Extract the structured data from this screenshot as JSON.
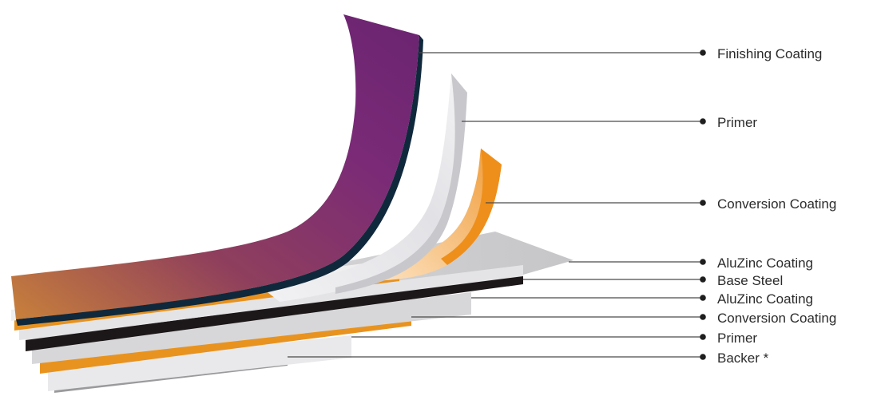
{
  "labels": {
    "finishing_coating": "Finishing Coating",
    "primer_top": "Primer",
    "conversion_coating_top": "Conversion Coating",
    "aluzinc_coating_top": "AluZinc Coating",
    "base_steel": "Base Steel",
    "aluzinc_coating_bottom": "AluZinc Coating",
    "conversion_coating_bottom": "Conversion Coating",
    "primer_bottom": "Primer",
    "backer": "Backer *"
  },
  "colors": {
    "finishing_coating": "#7c2a78",
    "finishing_edge": "#0f2a3d",
    "primer": "#e6e6e9",
    "conversion_coating": "#f0a440",
    "aluzinc": "#c9c9cb",
    "base_steel": "#1c1718",
    "backer": "#8a8a8c",
    "orange_band": "#e7921f"
  }
}
